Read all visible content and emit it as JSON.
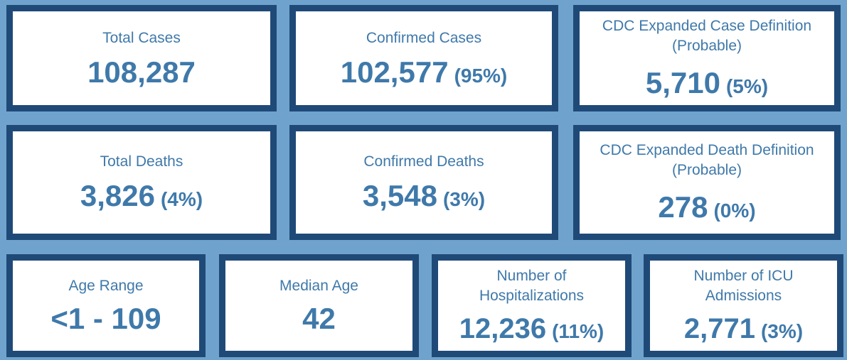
{
  "cards": {
    "total_cases": {
      "label": "Total Cases",
      "value": "108,287",
      "pct": ""
    },
    "confirmed_cases": {
      "label": "Confirmed Cases",
      "value": "102,577",
      "pct": "(95%)"
    },
    "probable_cases": {
      "label_line1": "CDC Expanded Case Definition",
      "label_line2": "(Probable)",
      "value": "5,710",
      "pct": "(5%)"
    },
    "total_deaths": {
      "label": "Total Deaths",
      "value": "3,826",
      "pct": "(4%)"
    },
    "confirmed_deaths": {
      "label": "Confirmed Deaths",
      "value": "3,548",
      "pct": "(3%)"
    },
    "probable_deaths": {
      "label_line1": "CDC Expanded Death Definition",
      "label_line2": "(Probable)",
      "value": "278",
      "pct": "(0%)"
    },
    "age_range": {
      "label": "Age Range",
      "value": "<1 - 109"
    },
    "median_age": {
      "label": "Median Age",
      "value": "42"
    },
    "hospitalizations": {
      "label_line1": "Number of",
      "label_line2": "Hospitalizations",
      "value": "12,236",
      "pct": "(11%)"
    },
    "icu_admissions": {
      "label_line1": "Number of ICU",
      "label_line2": "Admissions",
      "value": "2,771",
      "pct": "(3%)"
    }
  },
  "colors": {
    "background": "#6fa3cd",
    "card_border": "#1f4a78",
    "text": "#3f79aa",
    "card_fill": "#ffffff"
  }
}
